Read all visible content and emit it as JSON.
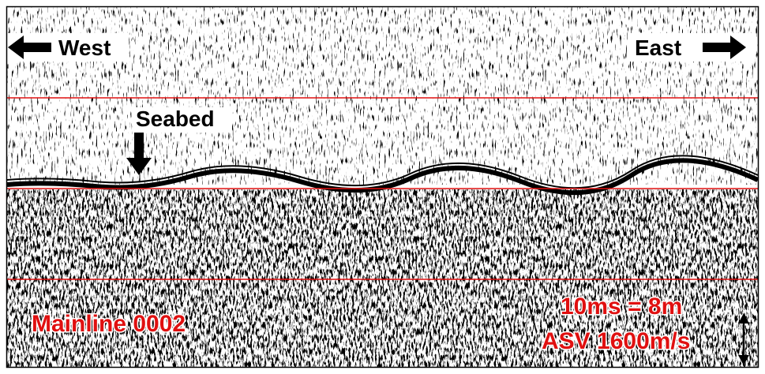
{
  "annotations": {
    "west": "West",
    "east": "East",
    "seabed": "Seabed",
    "line_name": "Mainline 0002",
    "scale": "10ms = 8m",
    "velocity": "ASV 1600m/s"
  }
}
